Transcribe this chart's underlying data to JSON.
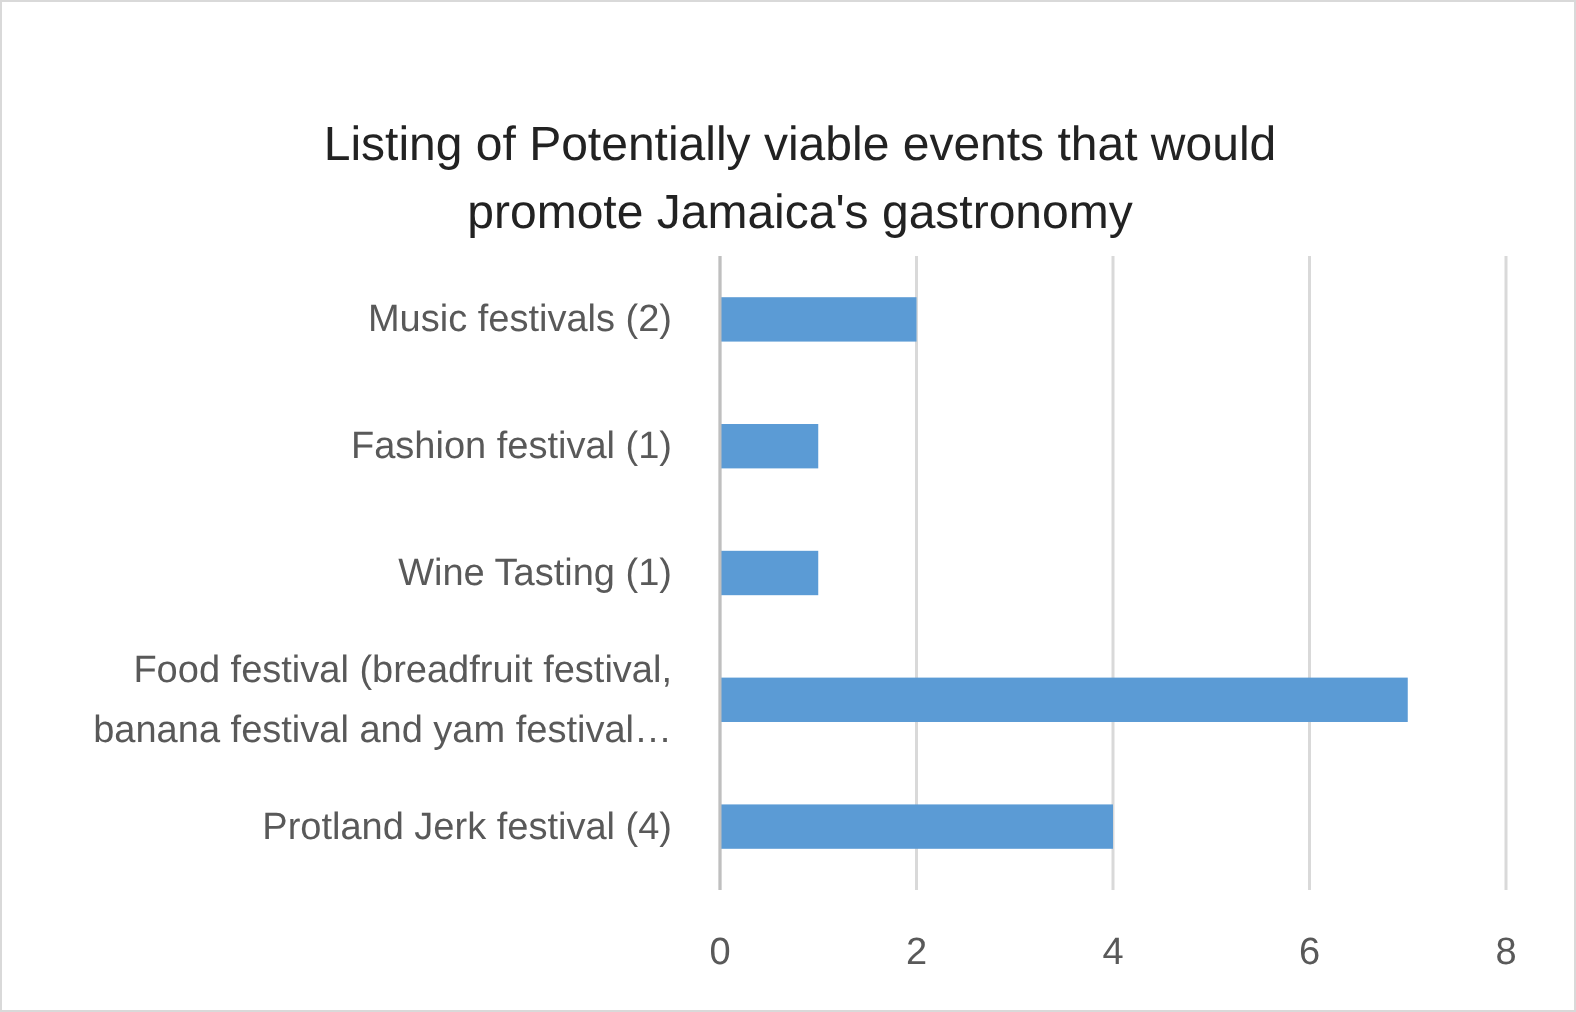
{
  "chart_data": {
    "type": "bar",
    "orientation": "horizontal",
    "title": "Listing of Potentially viable events that would promote Jamaica's gastronomy",
    "categories": [
      "Music festivals (2)",
      "Fashion festival (1)",
      "Wine Tasting (1)",
      "Food festival (breadfruit festival, banana festival and yam festival…",
      "Protland Jerk festival  (4)"
    ],
    "values": [
      2,
      1,
      1,
      7,
      4
    ],
    "color": "#5b9bd5",
    "xlim": [
      0,
      8
    ],
    "xticks": [
      0,
      2,
      4,
      6,
      8
    ],
    "grid": "x"
  }
}
